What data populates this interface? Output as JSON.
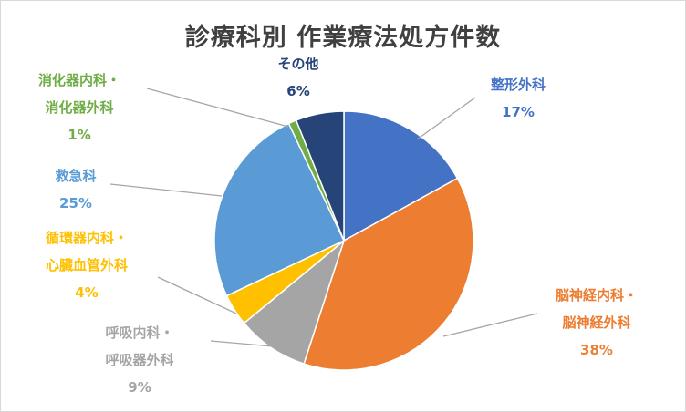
{
  "chart_data": {
    "type": "pie",
    "title": "診療科別 作業療法処方件数",
    "slices": [
      {
        "label": [
          "整形外科"
        ],
        "value": 17,
        "pct": "17%",
        "color": "#4472C4",
        "text_color": "#4472C4"
      },
      {
        "label": [
          "脳神経内科・",
          "脳神経外科"
        ],
        "value": 38,
        "pct": "38%",
        "color": "#ED7D31",
        "text_color": "#ED7D31"
      },
      {
        "label": [
          "呼吸内科・",
          "呼吸器外科"
        ],
        "value": 9,
        "pct": "9%",
        "color": "#A5A5A5",
        "text_color": "#A5A5A5"
      },
      {
        "label": [
          "循環器内科・",
          "心臓血管外科"
        ],
        "value": 4,
        "pct": "4%",
        "color": "#FFC000",
        "text_color": "#FFC000"
      },
      {
        "label": [
          "救急科"
        ],
        "value": 25,
        "pct": "25%",
        "color": "#5B9BD5",
        "text_color": "#5B9BD5"
      },
      {
        "label": [
          "消化器内科・",
          "消化器外科"
        ],
        "value": 1,
        "pct": "1%",
        "color": "#70AD47",
        "text_color": "#70AD47"
      },
      {
        "label": [
          "その他"
        ],
        "value": 6,
        "pct": "6%",
        "color": "#264478",
        "text_color": "#264478"
      }
    ]
  }
}
